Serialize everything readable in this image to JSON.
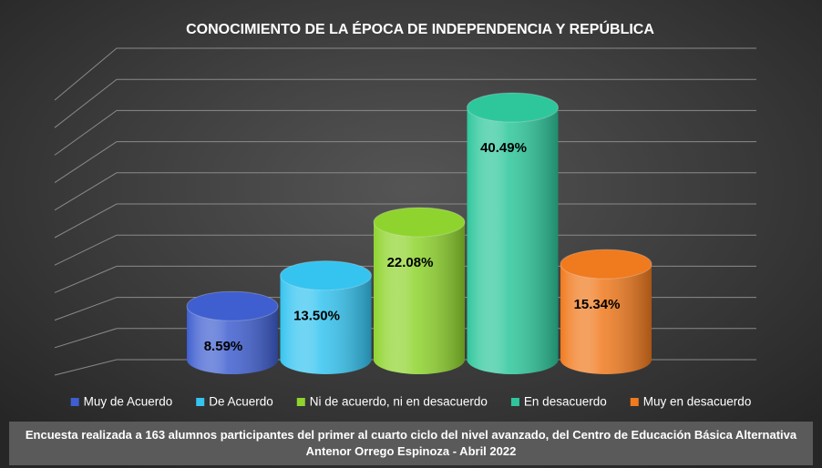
{
  "chart_data": {
    "type": "bar3d",
    "title": "CONOCIMIENTO DE LA ÉPOCA DE INDEPENDENCIA Y REPÚBLICA",
    "categories": [
      "Muy de Acuerdo",
      "De Acuerdo",
      "Ni de acuerdo, ni en desacuerdo",
      "En desacuerdo",
      "Muy en desacuerdo"
    ],
    "values": [
      8.59,
      13.5,
      22.08,
      40.49,
      15.34
    ],
    "value_labels": [
      "8.59%",
      "13.50%",
      "22.08%",
      "40.49%",
      "15.34%"
    ],
    "colors": [
      "#3f5fd0",
      "#35c4f0",
      "#8fd42e",
      "#2ec79c",
      "#f07a1e"
    ],
    "ylim": [
      0,
      50
    ],
    "yticks": [
      0,
      5,
      10,
      15,
      20,
      25,
      30,
      35,
      40,
      45,
      50
    ],
    "grid": true,
    "footer": "Encuesta realizada a 163 alumnos participantes del primer al cuarto ciclo del nivel avanzado, del Centro de Educación Básica Alternativa Antenor Orrego Espinoza - Abril 2022"
  }
}
